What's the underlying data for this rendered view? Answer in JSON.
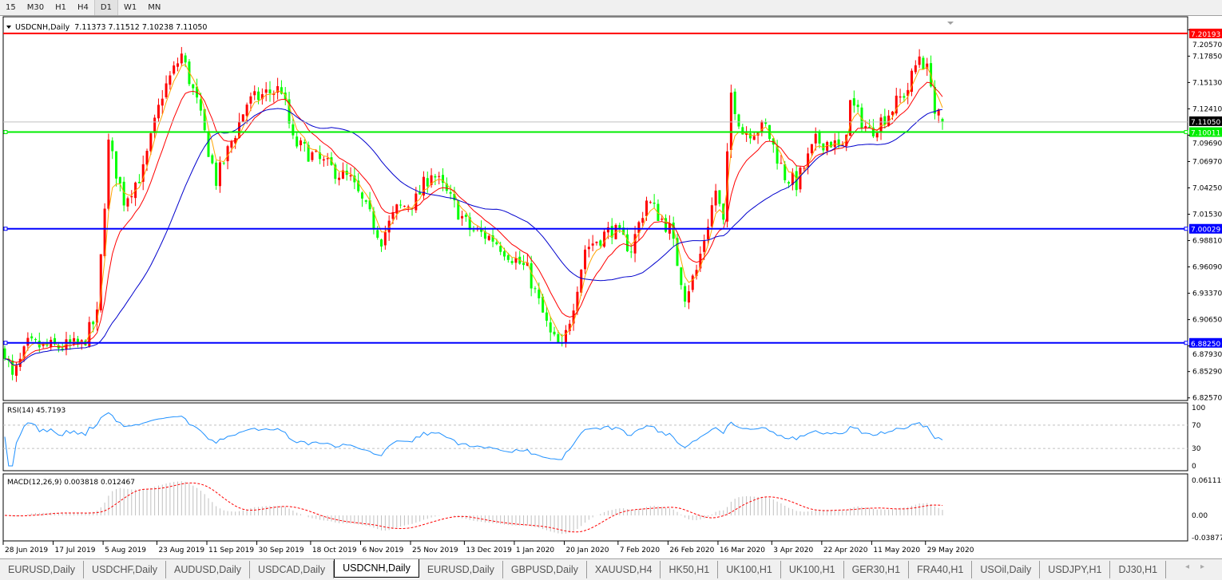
{
  "timeframes": [
    {
      "label": "15",
      "selected": false
    },
    {
      "label": "M30",
      "selected": false
    },
    {
      "label": "H1",
      "selected": false
    },
    {
      "label": "H4",
      "selected": false
    },
    {
      "label": "D1",
      "selected": true
    },
    {
      "label": "W1",
      "selected": false
    },
    {
      "label": "MN",
      "selected": false
    }
  ],
  "chart_header": {
    "symbol": "USDCNH,Daily",
    "ohlc": "7.11373 7.11512 7.10238 7.11050"
  },
  "chart_data": {
    "type": "candlestick",
    "symbol": "USDCNH",
    "timeframe": "Daily",
    "last_bar": {
      "open": 7.11373,
      "high": 7.11512,
      "low": 7.10238,
      "close": 7.1105
    },
    "ylim": [
      6.823,
      7.2134
    ],
    "y_ticks": [
      "7.20570",
      "7.17850",
      "7.15130",
      "7.12410",
      "7.09690",
      "7.06970",
      "7.04250",
      "7.01530",
      "6.98810",
      "6.96090",
      "6.93370",
      "6.90650",
      "6.87930",
      "6.85290",
      "6.82570"
    ],
    "x_labels": [
      "28 Jun 2019",
      "17 Jul 2019",
      "5 Aug 2019",
      "23 Aug 2019",
      "11 Sep 2019",
      "30 Sep 2019",
      "18 Oct 2019",
      "6 Nov 2019",
      "25 Nov 2019",
      "13 Dec 2019",
      "1 Jan 2020",
      "20 Jan 2020",
      "7 Feb 2020",
      "26 Feb 2020",
      "16 Mar 2020",
      "3 Apr 2020",
      "22 Apr 2020",
      "11 May 2020",
      "29 May 2020"
    ],
    "bull_color": "#ff0000",
    "bear_color": "#00ff00",
    "moving_average_colors": [
      "#ffa500",
      "#ff0000",
      "#0000cd"
    ],
    "approx_close_path": [
      [
        "2019-06-28",
        6.875
      ],
      [
        "2019-07-02",
        6.845
      ],
      [
        "2019-07-08",
        6.88
      ],
      [
        "2019-07-17",
        6.878
      ],
      [
        "2019-07-26",
        6.88
      ],
      [
        "2019-08-01",
        6.91
      ],
      [
        "2019-08-06",
        7.088
      ],
      [
        "2019-08-12",
        7.03
      ],
      [
        "2019-08-19",
        7.06
      ],
      [
        "2019-08-26",
        7.14
      ],
      [
        "2019-09-02",
        7.18
      ],
      [
        "2019-09-06",
        7.13
      ],
      [
        "2019-09-13",
        7.05
      ],
      [
        "2019-09-19",
        7.09
      ],
      [
        "2019-09-25",
        7.13
      ],
      [
        "2019-10-02",
        7.14
      ],
      [
        "2019-10-08",
        7.145
      ],
      [
        "2019-10-11",
        7.09
      ],
      [
        "2019-10-22",
        7.07
      ],
      [
        "2019-11-01",
        7.05
      ],
      [
        "2019-11-13",
        6.99
      ],
      [
        "2019-11-19",
        7.02
      ],
      [
        "2019-11-26",
        7.03
      ],
      [
        "2019-12-02",
        7.06
      ],
      [
        "2019-12-09",
        7.03
      ],
      [
        "2019-12-16",
        7.0
      ],
      [
        "2019-12-24",
        6.99
      ],
      [
        "2020-01-06",
        6.957
      ],
      [
        "2020-01-14",
        6.89
      ],
      [
        "2020-01-17",
        6.875
      ],
      [
        "2020-01-22",
        6.924
      ],
      [
        "2020-01-27",
        6.98
      ],
      [
        "2020-02-05",
        7.0
      ],
      [
        "2020-02-12",
        6.98
      ],
      [
        "2020-02-18",
        7.03
      ],
      [
        "2020-02-26",
        7.0
      ],
      [
        "2020-03-03",
        6.932
      ],
      [
        "2020-03-06",
        6.957
      ],
      [
        "2020-03-13",
        7.04
      ],
      [
        "2020-03-17",
        7.005
      ],
      [
        "2020-03-19",
        7.14
      ],
      [
        "2020-03-24",
        7.1
      ],
      [
        "2020-04-01",
        7.105
      ],
      [
        "2020-04-08",
        7.055
      ],
      [
        "2020-04-13",
        7.047
      ],
      [
        "2020-04-20",
        7.09
      ],
      [
        "2020-04-24",
        7.09
      ],
      [
        "2020-04-29",
        7.08
      ],
      [
        "2020-05-01",
        7.13
      ],
      [
        "2020-05-08",
        7.1
      ],
      [
        "2020-05-15",
        7.12
      ],
      [
        "2020-05-22",
        7.145
      ],
      [
        "2020-05-27",
        7.18
      ],
      [
        "2020-06-01",
        7.155
      ],
      [
        "2020-06-02",
        7.12
      ],
      [
        "2020-06-04",
        7.1105
      ]
    ],
    "horizontal_lines": [
      {
        "price": 7.20193,
        "label": "7.20193",
        "color": "#ff0000"
      },
      {
        "price": 7.10011,
        "label": "7.10011",
        "color": "#00ee00"
      },
      {
        "price": 7.00029,
        "label": "7.00029",
        "color": "#0000ff"
      },
      {
        "price": 6.8825,
        "label": "6.88250",
        "color": "#0000ff"
      }
    ],
    "bid_line": {
      "price": 7.1105,
      "label": "7.11050",
      "color": "#c0c0c0"
    },
    "rsi": {
      "label": "RSI(14) 45.7193",
      "period": 14,
      "levels": [
        30,
        70
      ],
      "ticks": [
        "100",
        "70",
        "30",
        "0"
      ],
      "color": "#1e90ff"
    },
    "macd": {
      "label": "MACD(12,26,9) 0.003818 0.012467",
      "ticks": [
        "0.061119",
        "0.00",
        "-0.03877"
      ],
      "ylim": [
        -0.03877,
        0.061119
      ],
      "histogram_color": "#c0c0c0",
      "signal_color": "#ff0000"
    }
  },
  "symbol_tabs": [
    {
      "label": "EURUSD,Daily",
      "active": false
    },
    {
      "label": "USDCHF,Daily",
      "active": false
    },
    {
      "label": "AUDUSD,Daily",
      "active": false
    },
    {
      "label": "USDCAD,Daily",
      "active": false
    },
    {
      "label": "USDCNH,Daily",
      "active": true
    },
    {
      "label": "EURUSD,Daily",
      "active": false
    },
    {
      "label": "GBPUSD,Daily",
      "active": false
    },
    {
      "label": "XAUUSD,H4",
      "active": false
    },
    {
      "label": "HK50,H1",
      "active": false
    },
    {
      "label": "UK100,H1",
      "active": false
    },
    {
      "label": "UK100,H1",
      "active": false
    },
    {
      "label": "GER30,H1",
      "active": false
    },
    {
      "label": "FRA40,H1",
      "active": false
    },
    {
      "label": "USOil,Daily",
      "active": false
    },
    {
      "label": "USDJPY,H1",
      "active": false
    },
    {
      "label": "DJ30,H1",
      "active": false
    }
  ]
}
